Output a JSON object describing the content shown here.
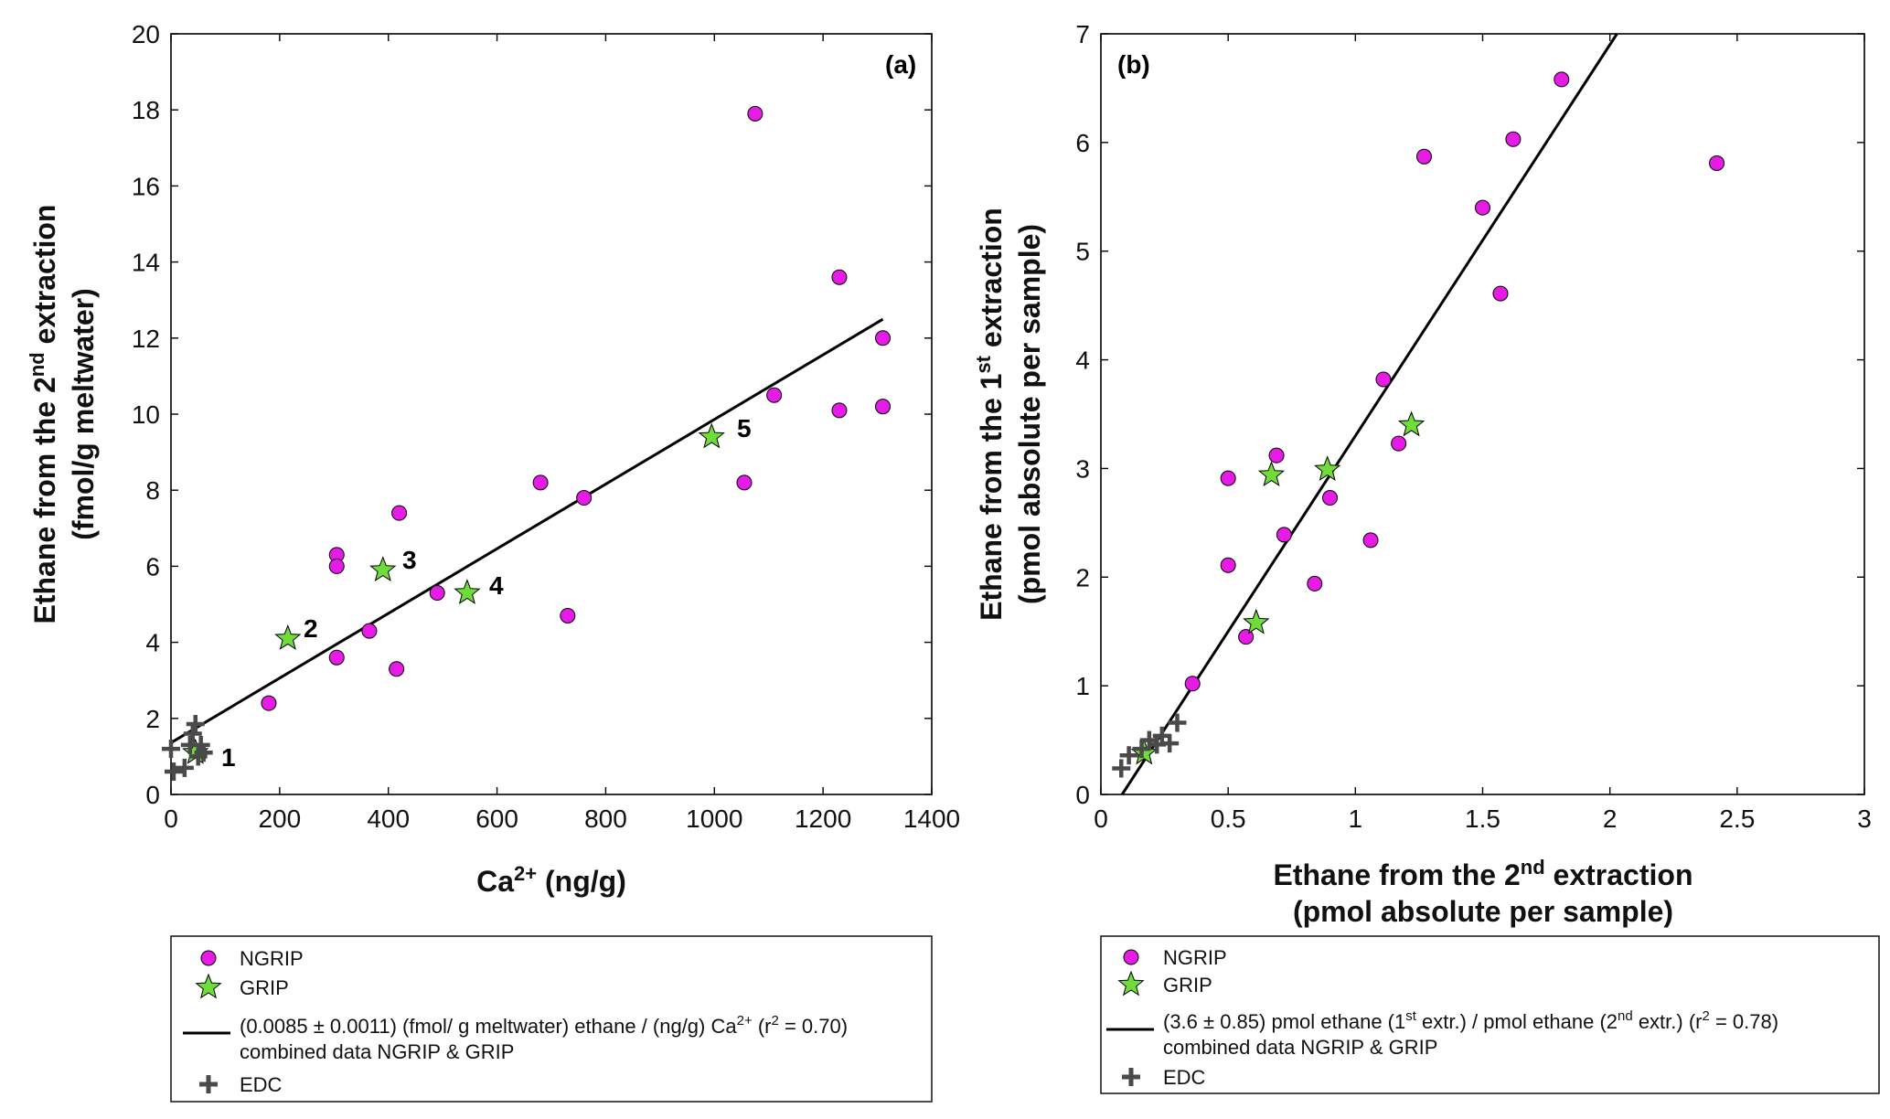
{
  "colors": {
    "ngrip": "#e61be6",
    "grip": "#6fdc3a",
    "edc": "#4a4a4a",
    "fit": "#000000",
    "axis": "#000000"
  },
  "chart_data": [
    {
      "id": "a",
      "type": "scatter",
      "panel_label": "(a)",
      "xlabel": {
        "base": "Ca",
        "sup": "2+",
        "rest": " (ng/g)"
      },
      "ylabel": {
        "line1_pre": "Ethane from the 2",
        "line1_sup": "nd",
        "line1_post": " extraction",
        "line2": "(fmol/g meltwater)"
      },
      "xlim": [
        0,
        1400
      ],
      "ylim": [
        0,
        20
      ],
      "xticks": [
        0,
        200,
        400,
        600,
        800,
        1000,
        1200,
        1400
      ],
      "yticks": [
        0,
        2,
        4,
        6,
        8,
        10,
        12,
        14,
        16,
        18,
        20
      ],
      "series": [
        {
          "name": "NGRIP",
          "marker": "circle",
          "x": [
            180,
            305,
            305,
            305,
            365,
            415,
            420,
            490,
            680,
            730,
            760,
            1055,
            1075,
            1110,
            1230,
            1230,
            1310,
            1310
          ],
          "y": [
            2.4,
            6.3,
            6.0,
            3.6,
            4.3,
            3.3,
            7.4,
            5.3,
            8.2,
            4.7,
            7.8,
            8.2,
            17.9,
            10.5,
            13.6,
            10.1,
            12.0,
            10.2
          ]
        },
        {
          "name": "GRIP",
          "marker": "star",
          "x": [
            45,
            215,
            390,
            545,
            995
          ],
          "y": [
            1.1,
            4.1,
            5.9,
            5.3,
            9.4
          ],
          "labels": [
            "1",
            "2",
            "3",
            "4",
            "5"
          ]
        },
        {
          "name": "EDC",
          "marker": "plus",
          "x": [
            0,
            5,
            25,
            35,
            40,
            45,
            50,
            55,
            60
          ],
          "y": [
            1.2,
            0.6,
            0.7,
            1.3,
            1.6,
            1.85,
            1.0,
            1.3,
            1.1
          ]
        }
      ],
      "fit": {
        "slope": 0.0085,
        "intercept": 1.36,
        "x_range": [
          0,
          1310
        ]
      },
      "legend": {
        "ngrip": "NGRIP",
        "grip": "GRIP",
        "fit_pre": "(0.0085 ± 0.0011) (fmol/ g meltwater) ethane / (ng/g) Ca",
        "fit_sup1": "2+",
        "fit_mid": " (r",
        "fit_sup2": "2",
        "fit_post": " = 0.70)",
        "fit_line2": "combined data NGRIP & GRIP",
        "edc": "EDC"
      }
    },
    {
      "id": "b",
      "type": "scatter",
      "panel_label": "(b)",
      "xlabel": {
        "line1_pre": "Ethane from the 2",
        "line1_sup": "nd",
        "line1_post": " extraction",
        "line2": "(pmol absolute per sample)"
      },
      "ylabel": {
        "line1_pre": "Ethane from the 1",
        "line1_sup": "st",
        "line1_post": " extraction",
        "line2": "(pmol absolute per sample)"
      },
      "xlim": [
        0,
        3
      ],
      "ylim": [
        0,
        7
      ],
      "xticks": [
        0,
        0.5,
        1,
        1.5,
        2,
        2.5,
        3
      ],
      "yticks": [
        0,
        1,
        2,
        3,
        4,
        5,
        6,
        7
      ],
      "series": [
        {
          "name": "NGRIP",
          "marker": "circle",
          "x": [
            0.36,
            0.5,
            0.5,
            0.57,
            0.69,
            0.72,
            0.84,
            0.9,
            1.06,
            1.11,
            1.17,
            1.27,
            1.5,
            1.57,
            1.62,
            1.81,
            2.42
          ],
          "y": [
            1.02,
            2.91,
            2.11,
            1.45,
            3.12,
            2.39,
            1.94,
            2.73,
            2.34,
            3.82,
            3.23,
            5.87,
            5.4,
            4.61,
            6.03,
            6.58,
            5.81
          ]
        },
        {
          "name": "GRIP",
          "marker": "star",
          "x": [
            0.17,
            0.61,
            0.67,
            0.89,
            1.22
          ],
          "y": [
            0.38,
            1.58,
            2.94,
            2.99,
            3.4
          ]
        },
        {
          "name": "EDC",
          "marker": "plus",
          "x": [
            0.08,
            0.11,
            0.16,
            0.19,
            0.22,
            0.24,
            0.27,
            0.3
          ],
          "y": [
            0.24,
            0.36,
            0.42,
            0.5,
            0.46,
            0.54,
            0.47,
            0.66
          ]
        }
      ],
      "fit": {
        "slope": 3.6,
        "intercept": -0.3,
        "x_range": [
          0.08,
          2.03
        ]
      },
      "legend": {
        "ngrip": "NGRIP",
        "grip": "GRIP",
        "fit_pre": "(3.6 ± 0.85) pmol ethane (1",
        "fit_sup1": "st",
        "fit_mid": " extr.) / pmol ethane  (2",
        "fit_sup2": "nd",
        "fit_mid2": " extr.) (r",
        "fit_sup3": "2",
        "fit_post": " = 0.78)",
        "fit_line2": "combined data NGRIP & GRIP",
        "edc": "EDC"
      }
    }
  ]
}
